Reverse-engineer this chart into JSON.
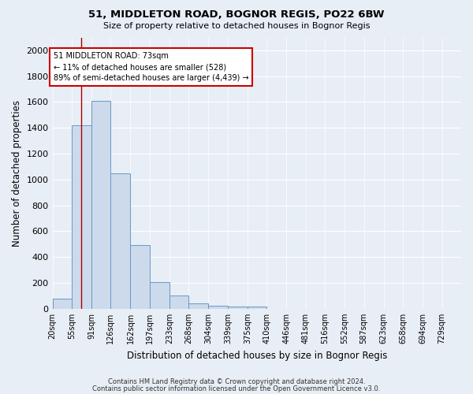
{
  "title1": "51, MIDDLETON ROAD, BOGNOR REGIS, PO22 6BW",
  "title2": "Size of property relative to detached houses in Bognor Regis",
  "xlabel": "Distribution of detached houses by size in Bognor Regis",
  "ylabel": "Number of detached properties",
  "categories": [
    "20sqm",
    "55sqm",
    "91sqm",
    "126sqm",
    "162sqm",
    "197sqm",
    "233sqm",
    "268sqm",
    "304sqm",
    "339sqm",
    "375sqm",
    "410sqm",
    "446sqm",
    "481sqm",
    "516sqm",
    "552sqm",
    "587sqm",
    "623sqm",
    "658sqm",
    "694sqm",
    "729sqm"
  ],
  "bar_values": [
    80,
    1420,
    1610,
    1050,
    490,
    205,
    105,
    40,
    25,
    20,
    15,
    0,
    0,
    0,
    0,
    0,
    0,
    0,
    0,
    0,
    0
  ],
  "bar_color": "#ccdaeb",
  "bar_edge_color": "#6699cc",
  "background_color": "#e8eef5",
  "grid_color": "#ffffff",
  "ylim": [
    0,
    2100
  ],
  "yticks": [
    0,
    200,
    400,
    600,
    800,
    1000,
    1200,
    1400,
    1600,
    1800,
    2000
  ],
  "red_line_x": 73,
  "red_line_color": "#aa0000",
  "annotation_text": "51 MIDDLETON ROAD: 73sqm\n← 11% of detached houses are smaller (528)\n89% of semi-detached houses are larger (4,439) →",
  "annotation_box_color": "#ffffff",
  "annotation_border_color": "#cc0000",
  "footnote1": "Contains HM Land Registry data © Crown copyright and database right 2024.",
  "footnote2": "Contains public sector information licensed under the Open Government Licence v3.0.",
  "bin_edges": [
    20,
    55,
    91,
    126,
    162,
    197,
    233,
    268,
    304,
    339,
    375,
    410,
    446,
    481,
    516,
    552,
    587,
    623,
    658,
    694,
    729
  ]
}
